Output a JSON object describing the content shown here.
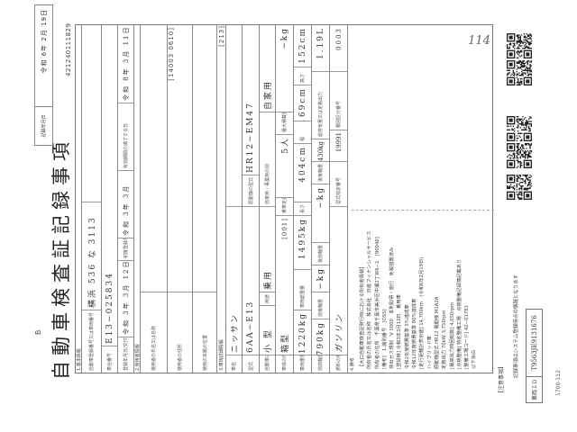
{
  "header": {
    "mark": "B",
    "title": "自動車検査証記録事項",
    "record_date_label": "記録年月日",
    "record_date": "令和 6年 2月 19日",
    "doc_number": "421240111829"
  },
  "basic": {
    "section": "1.基本情報",
    "reg_label": "自動車登録番号又は車両番号",
    "reg_value": "横浜 536 な 3113",
    "chassis_label": "車台番号",
    "chassis_value": "E13−025834",
    "reg_date_label": "登録年月日/交付年月日",
    "reg_date": "令和 3年 3月 12日",
    "first_reg_label": "初度登録年月",
    "first_reg": "令和 3年 3月",
    "expiry_label": "有効期間の満了する日",
    "expiry": "令和 8年 3月 11日"
  },
  "user": {
    "section": "2.使用者情報",
    "name_label": "使用者の氏名又は名称",
    "address_label": "使用者の住所",
    "address_code": "[14003 0610]",
    "base_label": "使用の本拠の位置"
  },
  "vehicle": {
    "section": "3.車両詳細情報",
    "section_code": "[213]",
    "maker_label": "車名",
    "maker": "ニッサン",
    "model_label": "型式",
    "model": "6AA−E13",
    "engine_label": "原動機の型式",
    "engine": "HR12−EM47",
    "kind_label": "自動車の種別",
    "kind": "小 型",
    "use_label": "用途",
    "use": "乗用",
    "private_label": "自家用・事業用の別",
    "private": "自家用",
    "body_label": "車体の形状",
    "body": "箱型",
    "body_code": "[001]",
    "capacity_label": "乗車定員",
    "capacity": "5人",
    "load_label": "最大積載量",
    "load": "−kg",
    "weight_label": "車両重量",
    "weight": "1220kg",
    "gross_label": "車両総重量",
    "gross": "1495kg",
    "length_label": "長さ",
    "length": "404cm",
    "width_label": "幅",
    "width": "169cm",
    "height_label": "高さ",
    "height": "152cm",
    "ff_axle_label": "前前軸重",
    "ff_axle": "790kg",
    "fr_axle_label": "前後軸重",
    "fr_axle": "−kg",
    "rf_axle_label": "後前軸重",
    "rf_axle": "−kg",
    "rr_axle_label": "後後軸重",
    "rr_axle": "430kg",
    "displacement_label": "総排気量又は定格出力",
    "displacement": "1.19L",
    "fuel_label": "燃料の種類",
    "fuel": "ガソリン",
    "type_no_label": "型式指定番号",
    "type_no": "19991",
    "class_no_label": "類別区分番号",
    "class_no": "0003"
  },
  "remarks": {
    "section": "4.備考",
    "lines": [
      "【大口自動車検査証発行時における所有者情報】",
      "所有者の氏名又は名称　株式会社　日産フィナンシャルサービス",
      "所有者の住所　千葉県千葉市美浜区中瀬2丁目6−1　[90040]",
      "[備考]　1.識別番号　[OSS]",
      "排出ガス規制　V 5000　本則取得・施行　免税措置済み",
      "[登録時] 令和3年3月12日　乗用車",
      "令和2年度燃費基準 5%達成車",
      "令和12年度燃費基準 80%達成車",
      "[走行距離計表示値] 14,700km　(令和6年2月19日)",
      "ハイブリッド車",
      "原動機型式 HR12 電動機 M1A2A",
      "定格出力 70kW 3,750rpm",
      "[最高出力時回転数] 4,050rpm",
      "[点検整備] 特定整備工場　点検整備記録簿記載あり",
      "[整備工場コード] 42−01781",
      "以下余白"
    ]
  },
  "notice": {
    "title": "【注意事項】",
    "text": "記録事項はシステム登録時点の情報となります",
    "vehicle_id_label": "車両ＩＤ",
    "vehicle_id": "T9563JE9131676",
    "form_no": "1700-112"
  },
  "handwritten": "114",
  "qr_codes": 5
}
